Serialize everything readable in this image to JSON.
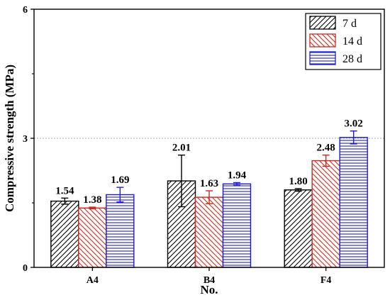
{
  "chart_data": {
    "type": "bar",
    "title": "",
    "xlabel": "No.",
    "ylabel": "Compressive strength (MPa)",
    "categories": [
      "A4",
      "B4",
      "F4"
    ],
    "ylim": [
      0,
      6
    ],
    "yticks": [
      "0",
      "3",
      "6"
    ],
    "reference_line": {
      "y": 3,
      "style": "dotted",
      "color": "#9aaac0"
    },
    "legend_position": "top-right",
    "series": [
      {
        "name": "7 d",
        "color": "#000000",
        "hatch": "diagonal-up",
        "fill_bg": "#ffffff",
        "values": [
          1.54,
          2.01,
          1.8
        ],
        "errors": [
          0.07,
          0.6,
          0.03
        ],
        "labels": [
          "1.54",
          "2.01",
          "1.80"
        ]
      },
      {
        "name": "14 d",
        "color": "#cc2a1e",
        "hatch": "diagonal-down",
        "fill_bg": "#ffffff",
        "values": [
          1.38,
          1.63,
          2.48
        ],
        "errors": [
          0.02,
          0.15,
          0.13
        ],
        "labels": [
          "1.38",
          "1.63",
          "2.48"
        ]
      },
      {
        "name": "28 d",
        "color": "#1c1cd4",
        "hatch": "horizontal",
        "fill_bg": "#ffffff",
        "values": [
          1.69,
          1.94,
          3.02
        ],
        "errors": [
          0.17,
          0.03,
          0.15
        ],
        "labels": [
          "1.69",
          "1.94",
          "3.02"
        ]
      }
    ]
  }
}
